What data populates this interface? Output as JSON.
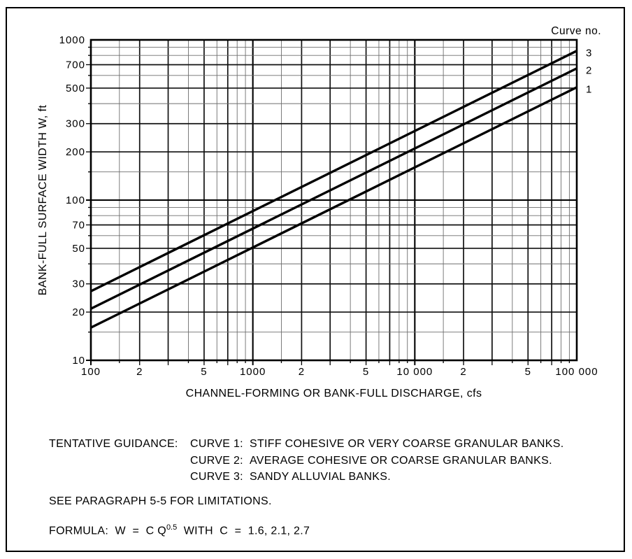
{
  "chart_data": {
    "type": "line",
    "x_scale": "log",
    "y_scale": "log",
    "x_range": [
      100,
      100000
    ],
    "y_range": [
      10,
      1000
    ],
    "grid": "log-log minor multiples 1, 1.5, 2, 3, 4, 5, 6, 7, 8, 9 per decade",
    "xlabel": "CHANNEL-FORMING OR BANK-FULL DISCHARGE, cfs",
    "ylabel": "BANK-FULL SURFACE WIDTH W, ft",
    "legend_title": "Curve no.",
    "x_tick_labels": [
      {
        "value": 100,
        "label": "100"
      },
      {
        "value": 200,
        "label": "2"
      },
      {
        "value": 500,
        "label": "5"
      },
      {
        "value": 1000,
        "label": "1000"
      },
      {
        "value": 2000,
        "label": "2"
      },
      {
        "value": 5000,
        "label": "5"
      },
      {
        "value": 10000,
        "label": "10 000"
      },
      {
        "value": 20000,
        "label": "2"
      },
      {
        "value": 50000,
        "label": "5"
      },
      {
        "value": 100000,
        "label": "100 000"
      }
    ],
    "y_tick_labels": [
      {
        "value": 1000,
        "label": "1000"
      },
      {
        "value": 700,
        "label": "700"
      },
      {
        "value": 500,
        "label": "500"
      },
      {
        "value": 300,
        "label": "300"
      },
      {
        "value": 200,
        "label": "200"
      },
      {
        "value": 100,
        "label": "100"
      },
      {
        "value": 70,
        "label": "70"
      },
      {
        "value": 50,
        "label": "50"
      },
      {
        "value": 30,
        "label": "30"
      },
      {
        "value": 20,
        "label": "20"
      },
      {
        "value": 10,
        "label": "10"
      }
    ],
    "series": [
      {
        "name": "1",
        "C": 1.6,
        "equation": "W = 1.6 Q^0.5",
        "points": [
          [
            100,
            16
          ],
          [
            100000,
            506
          ]
        ]
      },
      {
        "name": "2",
        "C": 2.1,
        "equation": "W = 2.1 Q^0.5",
        "points": [
          [
            100,
            21
          ],
          [
            100000,
            664
          ]
        ]
      },
      {
        "name": "3",
        "C": 2.7,
        "equation": "W = 2.7 Q^0.5",
        "points": [
          [
            100,
            27
          ],
          [
            100000,
            854
          ]
        ]
      }
    ]
  },
  "notes": {
    "tentative_label": "TENTATIVE GUIDANCE:",
    "guidance": [
      {
        "curve_label": "CURVE 1:",
        "text": "STIFF COHESIVE OR VERY COARSE GRANULAR BANKS."
      },
      {
        "curve_label": "CURVE 2:",
        "text": "AVERAGE COHESIVE OR COARSE GRANULAR BANKS."
      },
      {
        "curve_label": "CURVE 3:",
        "text": "SANDY ALLUVIAL BANKS."
      }
    ],
    "limitations": "SEE PARAGRAPH 5-5 FOR LIMITATIONS.",
    "formula": {
      "prefix": "FORMULA:  W  =  C Q",
      "exponent": "0.5",
      "suffix": "  WITH  C  =  1.6, 2.1, 2.7"
    }
  },
  "colors": {
    "ink": "#000000",
    "minor_grid": "#6e6e6e",
    "background": "#ffffff"
  }
}
